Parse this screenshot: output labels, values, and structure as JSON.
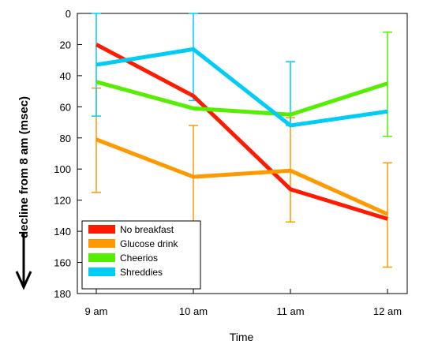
{
  "chart_data": {
    "type": "line",
    "title": "",
    "xlabel": "Time",
    "ylabel": "decline from 8 am (msec)",
    "categories": [
      "9 am",
      "10 am",
      "11 am",
      "12 am"
    ],
    "ylim": [
      0,
      180
    ],
    "y_inverted": true,
    "yticks": [
      0,
      20,
      40,
      60,
      80,
      100,
      120,
      140,
      160,
      180
    ],
    "grid": false,
    "legend_position": "bottom-left",
    "series": [
      {
        "name": "No breakfast",
        "color": "#ff1a00",
        "values": [
          20,
          53,
          113,
          132
        ],
        "error": [
          [
            20,
            20
          ],
          [
            53,
            53
          ],
          [
            113,
            113
          ],
          [
            132,
            132
          ]
        ]
      },
      {
        "name": "Glucose drink",
        "color": "#ff9900",
        "values": [
          81,
          105,
          101,
          129
        ],
        "error": [
          [
            48,
            115
          ],
          [
            72,
            138
          ],
          [
            67,
            134
          ],
          [
            96,
            163
          ]
        ]
      },
      {
        "name": "Cheerios",
        "color": "#55ee00",
        "values": [
          44,
          61,
          65,
          45
        ],
        "error": [
          [
            44,
            44
          ],
          [
            61,
            61
          ],
          [
            65,
            65
          ],
          [
            12,
            79
          ]
        ]
      },
      {
        "name": "Shreddies",
        "color": "#00ccf5",
        "values": [
          33,
          23,
          72,
          63
        ],
        "error": [
          [
            0,
            66
          ],
          [
            0,
            56
          ],
          [
            31,
            72
          ],
          [
            63,
            63
          ]
        ]
      }
    ]
  }
}
